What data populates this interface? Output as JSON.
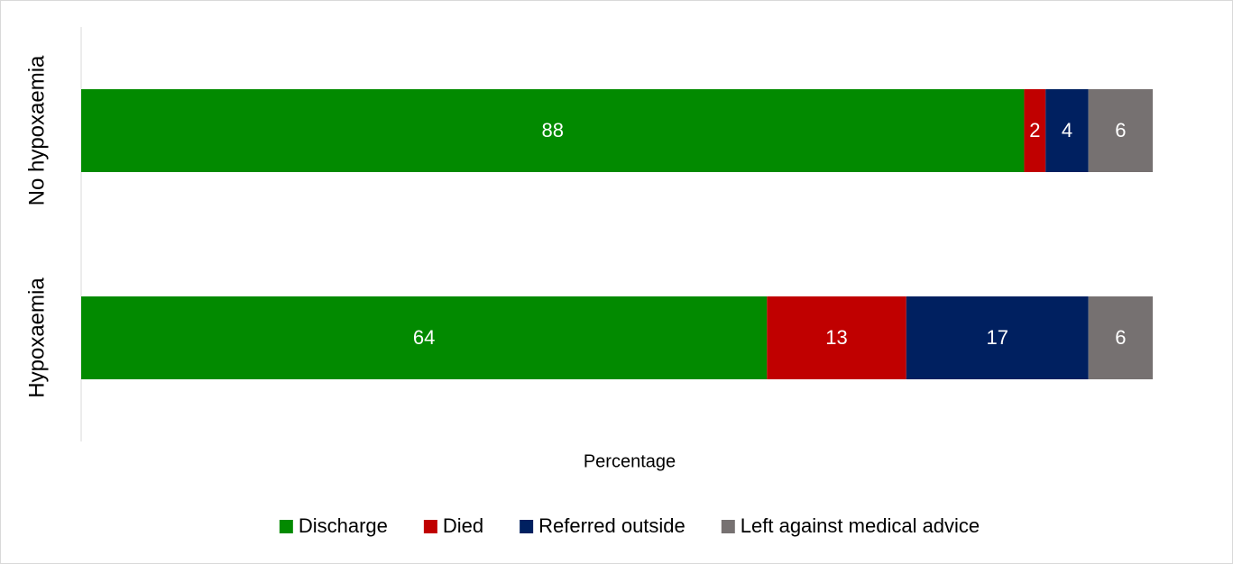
{
  "chart_data": {
    "type": "stacked-bar-horizontal",
    "x_label": "Percentage",
    "categories": [
      "No hypoxaemia",
      "Hypoxaemia"
    ],
    "series": [
      {
        "name": "Discharge",
        "color": "#028a00",
        "values": [
          88,
          64
        ]
      },
      {
        "name": "Died",
        "color": "#c00000",
        "values": [
          2,
          13
        ]
      },
      {
        "name": "Referred outside",
        "color": "#002060",
        "values": [
          4,
          17
        ]
      },
      {
        "name": "Left against medical advice",
        "color": "#767171",
        "values": [
          6,
          6
        ]
      }
    ],
    "xlim": [
      0,
      100
    ],
    "legend": "bottom"
  }
}
